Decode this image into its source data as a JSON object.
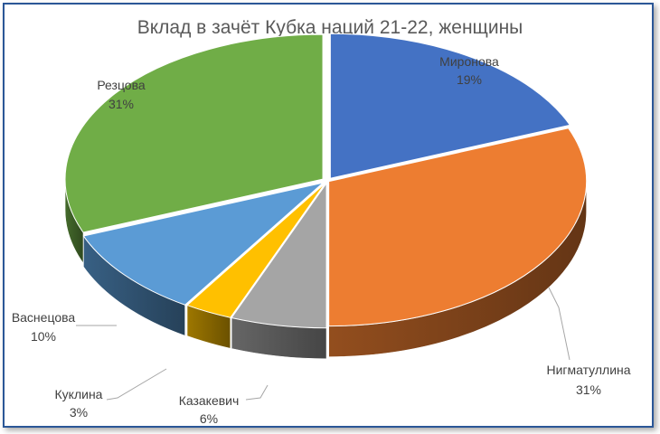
{
  "chart_data": {
    "type": "pie",
    "style": "3d-exploded",
    "title": "Вклад в зачёт Кубка наций 21-22, женщины",
    "categories": [
      "Миронова",
      "Нигматуллина",
      "Казакевич",
      "Куклина",
      "Васнецова",
      "Резцова"
    ],
    "values": [
      19,
      31,
      6,
      3,
      10,
      31
    ],
    "labels": [
      "19%",
      "31%",
      "6%",
      "3%",
      "10%",
      "31%"
    ],
    "colors": [
      "#4472c4",
      "#ed7d31",
      "#a5a5a5",
      "#ffc000",
      "#5b9bd5",
      "#70ad47"
    ],
    "legend": "none"
  }
}
